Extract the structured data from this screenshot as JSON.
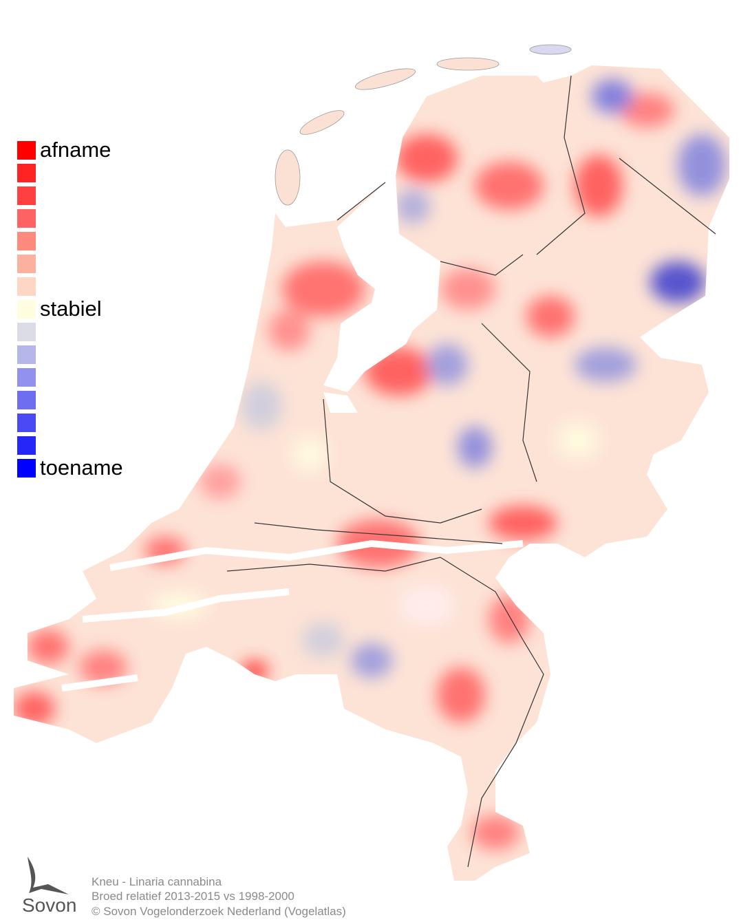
{
  "legend": {
    "items": [
      {
        "color": "#ff0000",
        "label": "afname"
      },
      {
        "color": "#ff2424"
      },
      {
        "color": "#ff4040"
      },
      {
        "color": "#ff6262"
      },
      {
        "color": "#fd8a7c"
      },
      {
        "color": "#fcb09e"
      },
      {
        "color": "#fdd6c4"
      },
      {
        "color": "#fffde0",
        "label": "stabiel"
      },
      {
        "color": "#dcdce6"
      },
      {
        "color": "#b6b6ea"
      },
      {
        "color": "#9292ee"
      },
      {
        "color": "#6e6ef0"
      },
      {
        "color": "#4a4af4"
      },
      {
        "color": "#2626f8"
      },
      {
        "color": "#0000ff",
        "label": "toename"
      }
    ]
  },
  "caption": {
    "lines": [
      "Kneu - Linaria cannabina",
      "Broed relatief 2013-2015 vs 1998-2000",
      "© Sovon Vogelonderzoek Nederland (Vogelatlas)"
    ]
  },
  "logo": {
    "text": "Sovon"
  }
}
